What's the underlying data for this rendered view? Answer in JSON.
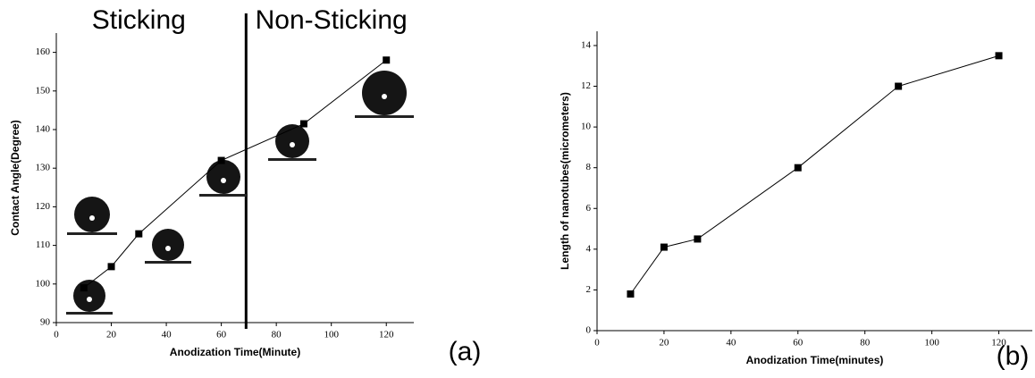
{
  "chart_data": [
    {
      "type": "line",
      "x_label": "Anodization Time(Minute)",
      "y_label": "Contact Angle(Degree)",
      "x": [
        10,
        20,
        30,
        60,
        90,
        120
      ],
      "values": [
        99,
        104.5,
        113,
        132,
        141.5,
        158
      ],
      "color": "#000000",
      "xlim": [
        0,
        130
      ],
      "ylim": [
        90,
        165
      ],
      "xticks": [
        0,
        20,
        40,
        60,
        80,
        100,
        120
      ],
      "yticks": [
        90,
        100,
        110,
        120,
        130,
        140,
        150,
        160
      ],
      "divider_x": 69,
      "annotations": [
        {
          "text": "Sticking",
          "x": 30
        },
        {
          "text": "Non-Sticking",
          "x": 100
        }
      ],
      "panel_label": "(a)"
    },
    {
      "type": "line",
      "x_label": "Anodization Time(minutes)",
      "y_label": "Length of nanotubes(micrometers)",
      "x": [
        10,
        20,
        30,
        60,
        90,
        120
      ],
      "values": [
        1.8,
        4.1,
        4.5,
        8,
        12,
        13.5
      ],
      "color": "#000000",
      "xlim": [
        0,
        130
      ],
      "ylim": [
        0,
        14.7
      ],
      "xticks": [
        0,
        20,
        40,
        60,
        80,
        100,
        120
      ],
      "yticks": [
        0,
        2,
        4,
        6,
        8,
        10,
        12,
        14
      ],
      "panel_label": "(b)"
    }
  ]
}
